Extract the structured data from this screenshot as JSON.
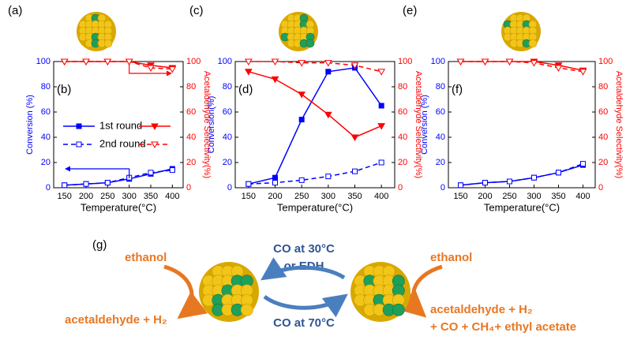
{
  "chart_data": [
    {
      "type": "line",
      "panel_labels": [
        "(a)",
        "(b)"
      ],
      "xlabel": "Temperature(°C)",
      "ylabel": "Conversion (%)",
      "y2label": "Acetaldehyde Selectivity(%)",
      "x": [
        150,
        200,
        250,
        300,
        350,
        400
      ],
      "xlim": [
        125,
        425
      ],
      "xticks": [
        150,
        200,
        250,
        300,
        350,
        400
      ],
      "ylim": [
        0,
        100
      ],
      "yticks": [
        0,
        20,
        40,
        60,
        80,
        100
      ],
      "y2lim": [
        0,
        100
      ],
      "y2ticks": [
        0,
        20,
        40,
        60,
        80,
        100
      ],
      "legend": [
        "1st round",
        "2nd round"
      ],
      "series": [
        {
          "color": "#0000ff",
          "marker": "square",
          "filled": true,
          "dashed": false,
          "values": [
            2,
            3,
            4,
            7,
            11,
            15
          ]
        },
        {
          "color": "#0000ff",
          "marker": "square",
          "filled": false,
          "dashed": true,
          "values": [
            2,
            3,
            4,
            8,
            12,
            14
          ]
        },
        {
          "color": "#ff0000",
          "marker": "triangle",
          "filled": true,
          "dashed": false,
          "axis": "y2",
          "values": [
            100,
            100,
            100,
            100,
            97,
            95
          ]
        },
        {
          "color": "#ff0000",
          "marker": "triangle",
          "filled": false,
          "dashed": true,
          "axis": "y2",
          "values": [
            100,
            100,
            100,
            100,
            95,
            94
          ]
        }
      ]
    },
    {
      "type": "line",
      "panel_labels": [
        "(c)",
        "(d)"
      ],
      "xlabel": "Temperature(°C)",
      "ylabel": "Conversion(%)",
      "y2label": "Acetaldehyde Selectivity(%)",
      "x": [
        150,
        200,
        250,
        300,
        350,
        400
      ],
      "xlim": [
        125,
        425
      ],
      "xticks": [
        150,
        200,
        250,
        300,
        350,
        400
      ],
      "ylim": [
        0,
        100
      ],
      "yticks": [
        0,
        20,
        40,
        60,
        80,
        100
      ],
      "y2lim": [
        0,
        100
      ],
      "y2ticks": [
        0,
        20,
        40,
        60,
        80,
        100
      ],
      "series": [
        {
          "color": "#0000ff",
          "marker": "square",
          "filled": true,
          "dashed": false,
          "values": [
            3,
            8,
            54,
            92,
            95,
            65
          ]
        },
        {
          "color": "#0000ff",
          "marker": "square",
          "filled": false,
          "dashed": true,
          "values": [
            3,
            4,
            6,
            9,
            13,
            20
          ]
        },
        {
          "color": "#ff0000",
          "marker": "triangle",
          "filled": true,
          "dashed": false,
          "axis": "y2",
          "values": [
            92,
            86,
            74,
            58,
            40,
            49
          ]
        },
        {
          "color": "#ff0000",
          "marker": "triangle",
          "filled": false,
          "dashed": true,
          "axis": "y2",
          "values": [
            100,
            100,
            99,
            99,
            97,
            92
          ]
        }
      ]
    },
    {
      "type": "line",
      "panel_labels": [
        "(e)",
        "(f)"
      ],
      "xlabel": "Temperature(°C)",
      "ylabel": "Conversion (%)",
      "y2label": "Acetaldehyde Selectivity(%)",
      "x": [
        150,
        200,
        250,
        300,
        350,
        400
      ],
      "xlim": [
        125,
        425
      ],
      "xticks": [
        150,
        200,
        250,
        300,
        350,
        400
      ],
      "ylim": [
        0,
        100
      ],
      "yticks": [
        0,
        20,
        40,
        60,
        80,
        100
      ],
      "y2lim": [
        0,
        100
      ],
      "y2ticks": [
        0,
        20,
        40,
        60,
        80,
        100
      ],
      "series": [
        {
          "color": "#0000ff",
          "marker": "square",
          "filled": true,
          "dashed": false,
          "values": [
            2,
            4,
            5,
            8,
            12,
            18
          ]
        },
        {
          "color": "#0000ff",
          "marker": "square",
          "filled": false,
          "dashed": true,
          "values": [
            2,
            4,
            5,
            8,
            12,
            19
          ]
        },
        {
          "color": "#ff0000",
          "marker": "triangle",
          "filled": true,
          "dashed": false,
          "axis": "y2",
          "values": [
            100,
            100,
            100,
            100,
            97,
            93
          ]
        },
        {
          "color": "#ff0000",
          "marker": "triangle",
          "filled": false,
          "dashed": true,
          "axis": "y2",
          "values": [
            100,
            100,
            100,
            99,
            95,
            92
          ]
        }
      ]
    }
  ],
  "scheme": {
    "label": "(g)",
    "left_input": "ethanol",
    "left_output": "acetaldehyde + H₂",
    "top_condition": [
      "CO at 30°C",
      "or EDH"
    ],
    "bottom_condition": "CO at 70°C",
    "right_input": "ethanol",
    "right_output": [
      "acetaldehyde + H₂",
      "+ CO + CH₄+ ethyl acetate"
    ]
  }
}
